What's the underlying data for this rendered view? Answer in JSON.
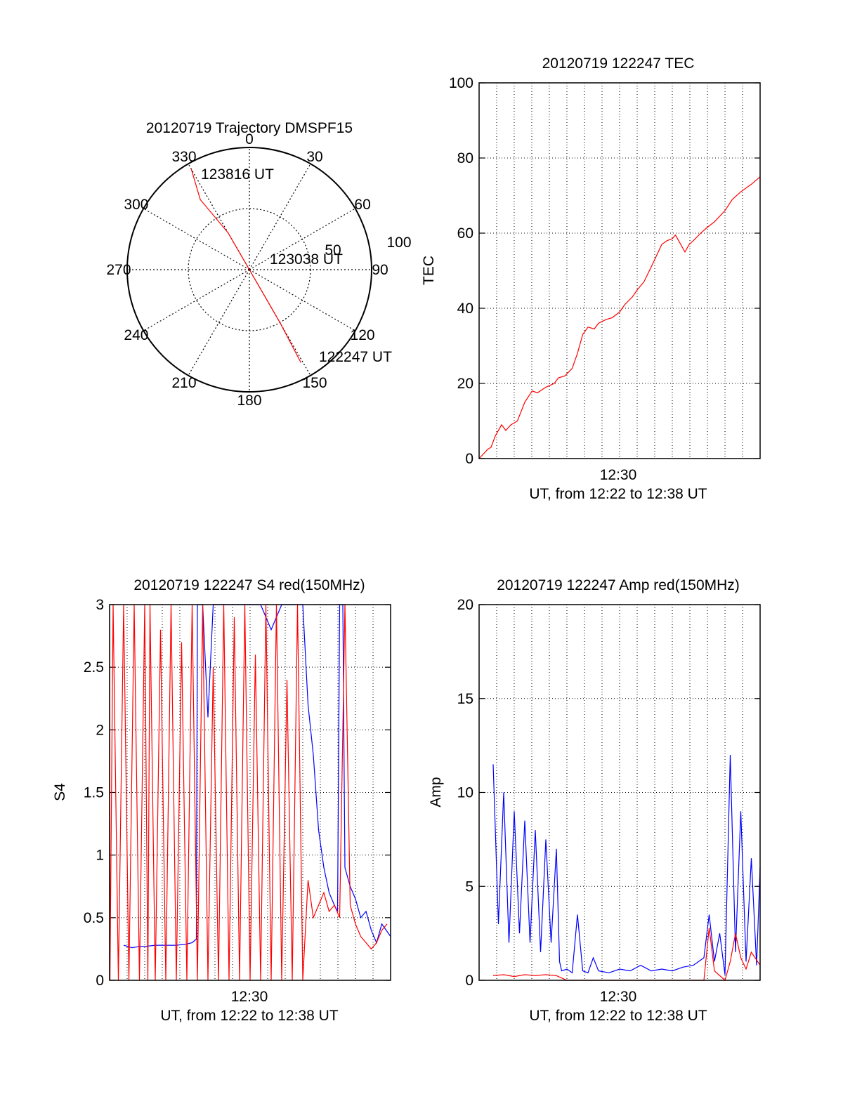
{
  "colors": {
    "red": "#ff0000",
    "blue": "#0000ff",
    "axis": "#000000",
    "grid": "#000000"
  },
  "chart_data": [
    {
      "type": "polar",
      "title": "20120719 Trajectory DMSPF15",
      "angle_labels": [
        "0",
        "30",
        "60",
        "90",
        "120",
        "150",
        "180",
        "210",
        "240",
        "270",
        "300",
        "330"
      ],
      "radial_labels": [
        "50",
        "100"
      ],
      "series": [
        {
          "color": "red",
          "points": [
            [
              330,
              95
            ],
            [
              325,
              70
            ],
            [
              330,
              35
            ],
            [
              90,
              0
            ],
            [
              150,
              20
            ],
            [
              150,
              50
            ],
            [
              151,
              87
            ]
          ]
        }
      ],
      "annotations": [
        {
          "text": "123816 UT",
          "at_azimuth": 335,
          "at_zenith": 82
        },
        {
          "text": "123038 UT",
          "at_azimuth": 80,
          "at_zenith": 28
        },
        {
          "text": "122247 UT",
          "at_azimuth": 136,
          "at_zenith": 98
        }
      ]
    },
    {
      "type": "line",
      "title": "20120719 122247 TEC",
      "xlabel": "UT, from 12:22 to 12:38 UT",
      "ylabel": "TEC",
      "xlim": [
        12.3667,
        12.6333
      ],
      "ylim": [
        0,
        100
      ],
      "x_ticks": [
        {
          "x": 12.5,
          "label": "12:30"
        }
      ],
      "y_ticks": [
        "0",
        "20",
        "40",
        "60",
        "80",
        "100"
      ],
      "grid": true,
      "series": [
        {
          "color": "red",
          "x": [
            12.3667,
            12.375,
            12.378,
            12.382,
            12.388,
            12.392,
            12.397,
            12.403,
            12.41,
            12.417,
            12.422,
            12.43,
            12.438,
            12.442,
            12.448,
            12.455,
            12.46,
            12.465,
            12.47,
            12.476,
            12.48,
            12.487,
            12.493,
            12.5,
            12.505,
            12.512,
            12.517,
            12.523,
            12.53,
            12.535,
            12.54,
            12.545,
            12.55,
            12.553,
            12.558,
            12.562,
            12.566,
            12.57,
            12.577,
            12.583,
            12.59,
            12.6,
            12.607,
            12.615,
            12.625,
            12.6333
          ],
          "y": [
            0,
            2.5,
            3,
            6,
            9,
            7.5,
            9,
            10,
            15,
            18,
            17.5,
            19,
            20,
            21.5,
            22,
            24,
            28,
            33,
            35,
            34.5,
            36,
            37,
            37.5,
            39,
            41,
            43,
            45,
            47,
            51,
            54,
            57,
            58,
            58.5,
            59.5,
            57,
            55,
            57,
            58,
            60,
            61.5,
            63,
            66,
            69,
            71,
            73,
            75
          ]
        }
      ]
    },
    {
      "type": "line",
      "title": "20120719 122247 S4 red(150MHz)",
      "xlabel": "UT, from 12:22 to 12:38 UT",
      "ylabel": "S4",
      "xlim": [
        12.3667,
        12.6333
      ],
      "ylim": [
        0,
        3
      ],
      "x_ticks": [
        {
          "x": 12.5,
          "label": "12:30"
        }
      ],
      "y_ticks": [
        "0",
        "0.5",
        "1",
        "1.5",
        "2",
        "2.5",
        "3"
      ],
      "grid": true,
      "series": [
        {
          "color": "blue",
          "x": [
            12.38,
            12.388,
            12.395,
            12.4,
            12.41,
            12.42,
            12.43,
            12.44,
            12.445,
            12.449,
            12.45,
            12.455,
            12.46,
            12.465,
            12.47,
            12.475,
            12.48,
            12.49,
            12.5,
            12.51,
            12.52,
            12.53,
            12.54,
            12.55,
            12.555,
            12.56,
            12.565,
            12.57,
            12.575,
            12.58,
            12.583,
            12.585,
            12.588,
            12.59,
            12.595,
            12.6,
            12.605,
            12.61,
            12.615,
            12.62,
            12.625,
            12.6333
          ],
          "y": [
            0.28,
            0.26,
            0.27,
            0.27,
            0.28,
            0.28,
            0.28,
            0.29,
            0.3,
            0.33,
            3.0,
            3.0,
            2.1,
            3.0,
            3.0,
            3.0,
            3.0,
            3.0,
            3.0,
            3.0,
            2.8,
            3.0,
            3.0,
            3.0,
            2.2,
            1.8,
            1.2,
            0.9,
            0.7,
            0.6,
            0.55,
            3.0,
            3.0,
            0.9,
            0.75,
            0.65,
            0.5,
            0.55,
            0.4,
            0.3,
            0.45,
            0.35
          ]
        },
        {
          "color": "red",
          "x": [
            12.36,
            12.362,
            12.365,
            12.367,
            12.37,
            12.375,
            12.38,
            12.385,
            12.39,
            12.395,
            12.4,
            12.403,
            12.405,
            12.41,
            12.415,
            12.42,
            12.425,
            12.43,
            12.435,
            12.44,
            12.445,
            12.45,
            12.455,
            12.46,
            12.465,
            12.47,
            12.475,
            12.48,
            12.485,
            12.49,
            12.495,
            12.5,
            12.505,
            12.51,
            12.515,
            12.52,
            12.525,
            12.53,
            12.535,
            12.54,
            12.545,
            12.55,
            12.555,
            12.56,
            12.565,
            12.57,
            12.575,
            12.58,
            12.585,
            12.59,
            12.595,
            12.6,
            12.605,
            12.61,
            12.615,
            12.62,
            12.625,
            12.63
          ],
          "y": [
            3.0,
            0.0,
            3.0,
            0.0,
            3.0,
            0.0,
            3.0,
            0.0,
            3.0,
            0.0,
            3.0,
            0.0,
            3.0,
            0.0,
            2.8,
            0.0,
            3.0,
            0.0,
            2.7,
            0.0,
            3.0,
            0.0,
            3.0,
            0.0,
            2.5,
            0.0,
            3.0,
            0.0,
            2.9,
            0.0,
            3.0,
            0.0,
            2.6,
            0.0,
            3.0,
            0.0,
            3.0,
            0.0,
            2.4,
            0.0,
            3.0,
            0.0,
            0.8,
            0.5,
            0.6,
            0.7,
            0.55,
            0.6,
            0.5,
            3.0,
            0.6,
            0.45,
            0.35,
            0.3,
            0.25,
            0.3,
            0.4,
            0.45
          ]
        }
      ]
    },
    {
      "type": "line",
      "title": "20120719 122247 Amp red(150MHz)",
      "xlabel": "UT, from 12:22 to 12:38 UT",
      "ylabel": "Amp",
      "xlim": [
        12.3667,
        12.6333
      ],
      "ylim": [
        0,
        20
      ],
      "x_ticks": [
        {
          "x": 12.5,
          "label": "12:30"
        }
      ],
      "y_ticks": [
        "0",
        "5",
        "10",
        "15",
        "20"
      ],
      "grid": true,
      "series": [
        {
          "color": "blue",
          "x": [
            12.38,
            12.385,
            12.39,
            12.395,
            12.4,
            12.405,
            12.41,
            12.415,
            12.42,
            12.425,
            12.43,
            12.435,
            12.44,
            12.443,
            12.445,
            12.45,
            12.455,
            12.46,
            12.465,
            12.47,
            12.475,
            12.48,
            12.49,
            12.5,
            12.51,
            12.52,
            12.53,
            12.54,
            12.55,
            12.56,
            12.57,
            12.58,
            12.585,
            12.59,
            12.595,
            12.6,
            12.605,
            12.61,
            12.615,
            12.62,
            12.625,
            12.63,
            12.6333
          ],
          "y": [
            11.5,
            3.0,
            10.0,
            2.0,
            9.0,
            2.5,
            8.5,
            2.0,
            8.0,
            1.5,
            7.5,
            2.0,
            7.0,
            1.0,
            0.5,
            0.6,
            0.4,
            3.5,
            0.5,
            0.4,
            1.2,
            0.5,
            0.4,
            0.6,
            0.5,
            0.8,
            0.5,
            0.6,
            0.5,
            0.7,
            0.8,
            1.2,
            3.5,
            1.0,
            2.5,
            0.3,
            12.0,
            1.5,
            9.0,
            1.0,
            6.5,
            0.8,
            6.0
          ]
        },
        {
          "color": "red",
          "x": [
            12.38,
            12.39,
            12.4,
            12.41,
            12.42,
            12.43,
            12.44,
            12.45,
            12.5,
            12.55,
            12.58,
            12.585,
            12.59,
            12.6,
            12.605,
            12.61,
            12.615,
            12.62,
            12.625,
            12.6333
          ],
          "y": [
            0.25,
            0.3,
            0.2,
            0.3,
            0.25,
            0.3,
            0.25,
            0.0,
            0.0,
            0.0,
            0.0,
            2.8,
            0.5,
            0.0,
            1.0,
            2.5,
            1.2,
            0.6,
            1.5,
            0.8
          ]
        }
      ]
    }
  ]
}
